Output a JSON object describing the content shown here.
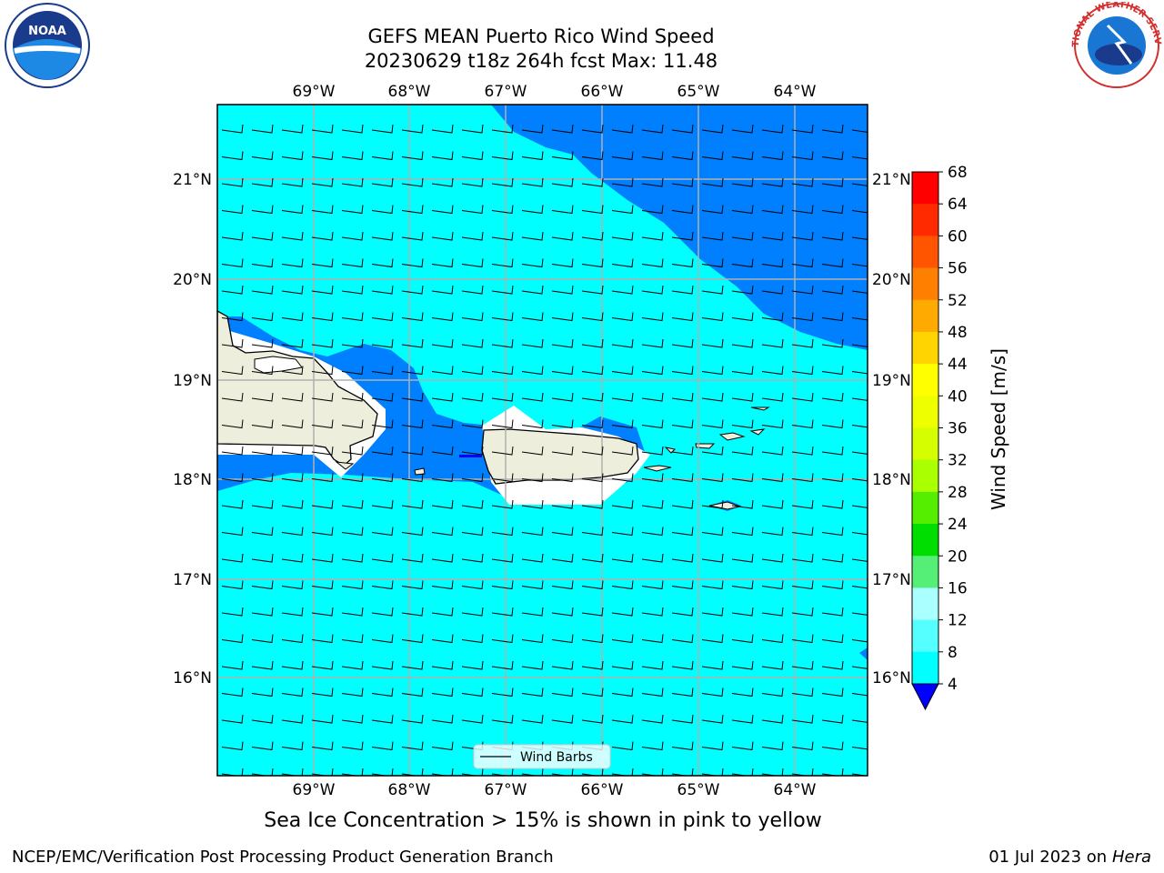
{
  "header": {
    "title_line1": "GEFS MEAN Puerto Rico Wind Speed",
    "title_line2": "20230629 t18z 264h fcst   Max: 11.48"
  },
  "map": {
    "lon_labels": [
      "69°W",
      "68°W",
      "67°W",
      "66°W",
      "65°W",
      "64°W"
    ],
    "lat_labels": [
      "21°N",
      "20°N",
      "19°N",
      "18°N",
      "17°N",
      "16°N"
    ],
    "legend_label": "Wind Barbs",
    "colors": {
      "ocean_light": "#00ffff",
      "ocean_dark": "#0080ff",
      "land": "#eeeedc"
    }
  },
  "colorbar": {
    "label": "Wind Speed [m/s]",
    "ticks": [
      "68",
      "64",
      "60",
      "56",
      "52",
      "48",
      "44",
      "40",
      "36",
      "32",
      "28",
      "24",
      "20",
      "16",
      "12",
      "8",
      "4"
    ],
    "colors": [
      "#ff0000",
      "#ff2a00",
      "#ff5500",
      "#ff8000",
      "#ffaa00",
      "#ffd400",
      "#ffff00",
      "#eeff00",
      "#d5ff00",
      "#aaff00",
      "#55ee00",
      "#00dd00",
      "#55ee77",
      "#aaffff",
      "#55ffff",
      "#00ffff",
      "#0080ff",
      "#0000ff"
    ]
  },
  "logos": {
    "noaa_text": "NOAA",
    "nws_text": "NATIONAL WEATHER SERVICE"
  },
  "caption": "Sea Ice Concentration > 15% is shown in pink to yellow",
  "footer": {
    "left": "NCEP/EMC/Verification Post Processing Product Generation Branch",
    "date": "01 Jul 2023 on ",
    "machine": "Hera"
  }
}
